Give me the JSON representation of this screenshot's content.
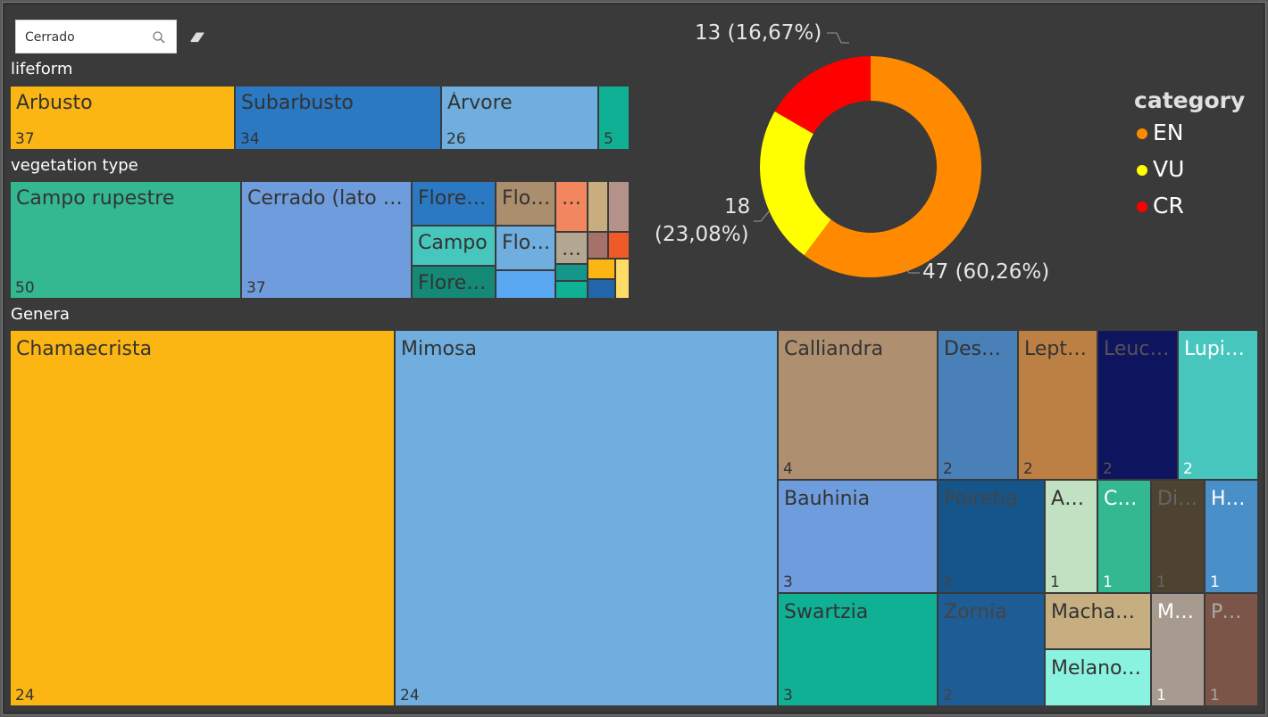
{
  "search": {
    "value": "Cerrado"
  },
  "icons": {
    "search": "search-icon",
    "eraser": "eraser-icon"
  },
  "lifeform": {
    "title": "lifeform",
    "tiles": [
      {
        "label": "Arbusto",
        "value": "37",
        "color": "#fbb614"
      },
      {
        "label": "Subarbusto",
        "value": "34",
        "color": "#2b79c2"
      },
      {
        "label": "Árvore",
        "value": "26",
        "color": "#6faede"
      },
      {
        "label": "",
        "value": "5",
        "color": "#10b094"
      }
    ]
  },
  "vegetation": {
    "title": "vegetation type",
    "tiles": [
      {
        "label": "Campo rupestre",
        "value": "50",
        "color": "#33b891"
      },
      {
        "label": "Cerrado (lato sensu)",
        "value": "37",
        "color": "#6f9cdc"
      },
      {
        "label": "Floresta Estacional",
        "value": "",
        "color": "#2b79c2"
      },
      {
        "label": "Floresta Ombrófila",
        "value": "",
        "color": "#ab8e6e"
      },
      {
        "label": "Campo",
        "value": "",
        "color": "#46c6bc"
      },
      {
        "label": "Floresta",
        "value": "",
        "color": "#6faede"
      },
      {
        "label": "Floresta",
        "value": "",
        "color": "#148a76"
      },
      {
        "label": "…",
        "value": "",
        "color": "#f2865e"
      },
      {
        "label": "",
        "value": "",
        "color": "#c8ae7f"
      },
      {
        "label": "",
        "value": "",
        "color": "#b4928a"
      },
      {
        "label": "…",
        "value": "",
        "color": "#b4a792"
      },
      {
        "label": "",
        "value": "",
        "color": "#a6716a"
      },
      {
        "label": "",
        "value": "",
        "color": "#ef5a2a"
      },
      {
        "label": "",
        "value": "",
        "color": "#5aa8f2"
      },
      {
        "label": "",
        "value": "",
        "color": "#14978a"
      },
      {
        "label": "",
        "value": "",
        "color": "#fbb614"
      },
      {
        "label": "",
        "value": "",
        "color": "#10b094"
      },
      {
        "label": "",
        "value": "",
        "color": "#2265a8"
      },
      {
        "label": "",
        "value": "",
        "color": "#fedb66"
      }
    ]
  },
  "genera": {
    "title": "Genera",
    "tiles": [
      {
        "label": "Chamaecrista",
        "value": "24",
        "color": "#fbb614",
        "text": "#333"
      },
      {
        "label": "Mimosa",
        "value": "24",
        "color": "#6faede",
        "text": "#333"
      },
      {
        "label": "Calliandra",
        "value": "4",
        "color": "#ae8f70",
        "text": "#333"
      },
      {
        "label": "Desmodium",
        "value": "2",
        "color": "#4a80b8",
        "text": "#333"
      },
      {
        "label": "Leptolobium",
        "value": "2",
        "color": "#bc8045",
        "text": "#333"
      },
      {
        "label": "Leucaena",
        "value": "2",
        "color": "#0f145e",
        "text": "#555"
      },
      {
        "label": "Lupinus",
        "value": "2",
        "color": "#46c6bc",
        "text": "#fff"
      },
      {
        "label": "Bauhinia",
        "value": "3",
        "color": "#6f9cdc",
        "text": "#333"
      },
      {
        "label": "Poiretia",
        "value": "2",
        "color": "#165589",
        "text": "#444"
      },
      {
        "label": "Andira",
        "value": "1",
        "color": "#c2e0c2",
        "text": "#333"
      },
      {
        "label": "Camptosema",
        "value": "1",
        "color": "#33b891",
        "text": "#fff"
      },
      {
        "label": "Dimorphandra",
        "value": "1",
        "color": "#4e4330",
        "text": "#666"
      },
      {
        "label": "Harpalyce",
        "value": "1",
        "color": "#4a90c8",
        "text": "#fff"
      },
      {
        "label": "Swartzia",
        "value": "3",
        "color": "#10b094",
        "text": "#333"
      },
      {
        "label": "Zornia",
        "value": "2",
        "color": "#1e5c96",
        "text": "#444"
      },
      {
        "label": "Machaerium",
        "value": "",
        "color": "#c6ae80",
        "text": "#333"
      },
      {
        "label": "Melanoxylon",
        "value": "",
        "color": "#8af3e0",
        "text": "#333"
      },
      {
        "label": "Mysanthus",
        "value": "1",
        "color": "#a79b8f",
        "text": "#fff"
      },
      {
        "label": "Periandra",
        "value": "1",
        "color": "#7a5548",
        "text": "#aaa"
      }
    ]
  },
  "donut": {
    "slices": [
      {
        "category": "EN",
        "value": 47,
        "percent": "60,26%",
        "label": "47 (60,26%)",
        "color": "#ff8a00"
      },
      {
        "category": "VU",
        "value": 18,
        "percent": "23,08%",
        "label_line1": "18",
        "label_line2": "(23,08%)",
        "color": "#ffff00"
      },
      {
        "category": "CR",
        "value": 13,
        "percent": "16,67%",
        "label": "13 (16,67%)",
        "color": "#ff0000"
      }
    ]
  },
  "legend": {
    "title": "category",
    "items": [
      {
        "label": "EN",
        "color": "#ff8a00"
      },
      {
        "label": "VU",
        "color": "#ffff00"
      },
      {
        "label": "CR",
        "color": "#ff0000"
      }
    ]
  }
}
